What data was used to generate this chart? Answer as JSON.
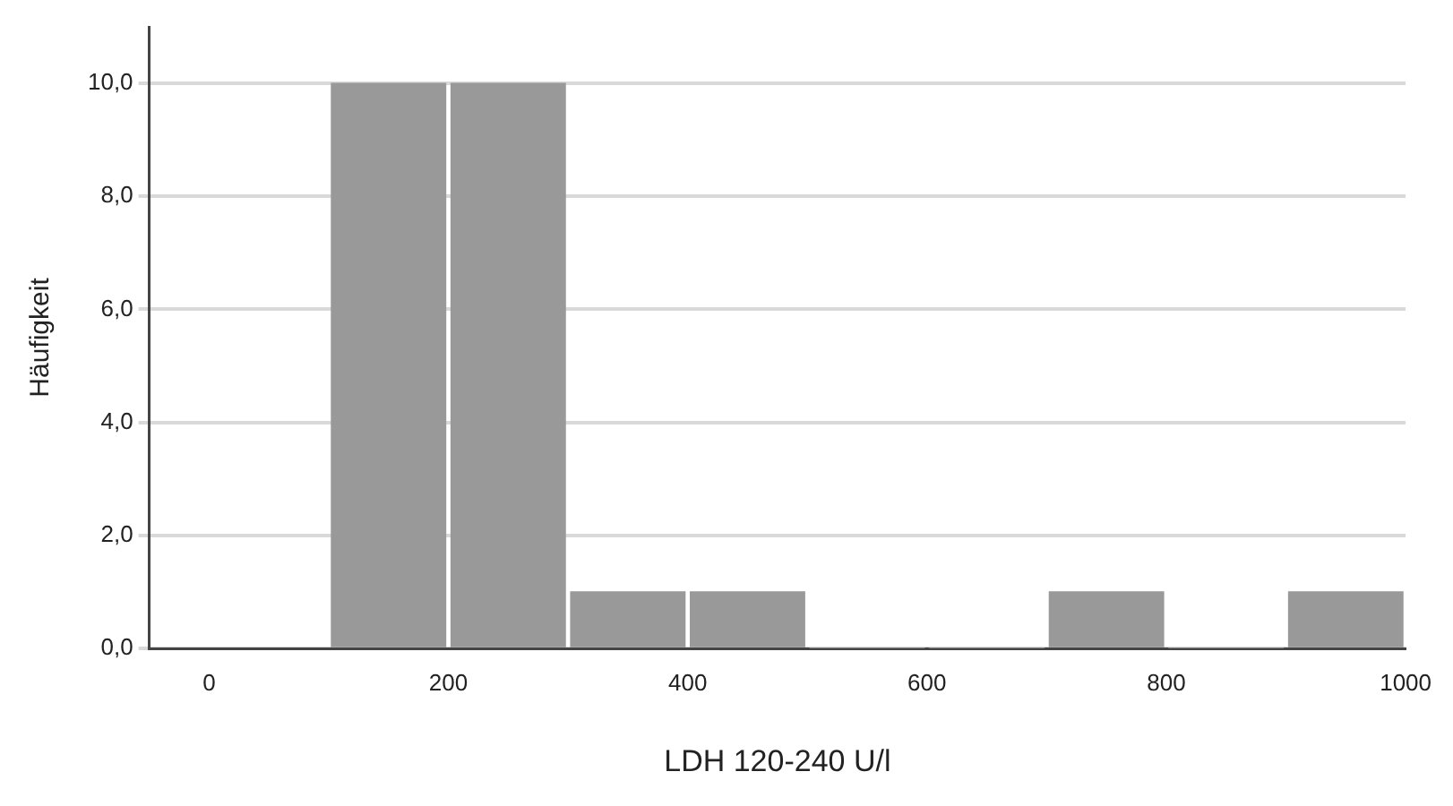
{
  "chart_data": {
    "type": "histogram",
    "xlabel": "LDH 120-240 U/l",
    "ylabel": "Häufigkeit",
    "bins": [
      100,
      200,
      300,
      400,
      500,
      600,
      700,
      800,
      900,
      1000
    ],
    "values": [
      10,
      10,
      1,
      1,
      0,
      0,
      1,
      0,
      1
    ],
    "color": "#999999",
    "xlim": [
      -50,
      1000
    ],
    "xticks": [
      0,
      200,
      400,
      600,
      800,
      1000
    ],
    "ylim": [
      0,
      11
    ],
    "yticks": [
      {
        "value": 0,
        "label": "0,0"
      },
      {
        "value": 2,
        "label": "2,0"
      },
      {
        "value": 4,
        "label": "4,0"
      },
      {
        "value": 6,
        "label": "6,0"
      },
      {
        "value": 8,
        "label": "8,0"
      },
      {
        "value": 10,
        "label": "10,0"
      }
    ],
    "grid": "y",
    "legend": false
  }
}
